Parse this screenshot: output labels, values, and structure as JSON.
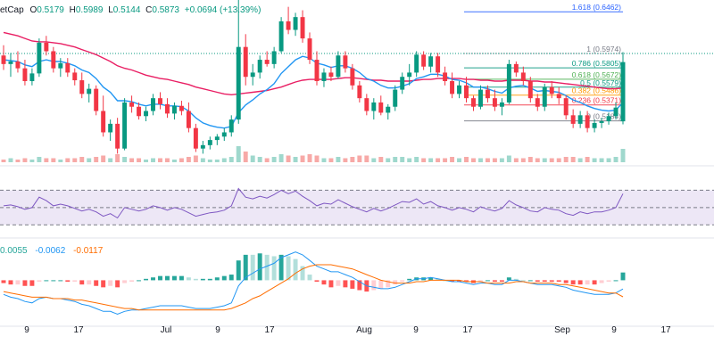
{
  "header": {
    "symbol": "etCap",
    "open_label": "O",
    "open": "0.5179",
    "high_label": "H",
    "high": "0.5989",
    "low_label": "L",
    "low": "0.5144",
    "close_label": "C",
    "close": "0.5873",
    "change": "+0.0694 (+13.39%)"
  },
  "colors": {
    "up": "#089981",
    "down": "#f23645",
    "vol_up": "#9fd8cd",
    "vol_down": "#f7a9a7",
    "ema_fast": "#2196f3",
    "ema_slow": "#e91e63",
    "rsi": "#7e57c2",
    "rsi_band": "#ede7f6",
    "macd": "#2196f3",
    "signal": "#ff6d00",
    "hist_up_strong": "#26a69a",
    "hist_up_weak": "#b2dfdb",
    "hist_down_strong": "#ff5252",
    "hist_down_weak": "#ffcdd2",
    "fib_1618": "#2962ff",
    "fib_1": "#787b86",
    "fib_0786": "#089981",
    "fib_0618": "#4caf50",
    "fib_05": "#089981",
    "fib_0382": "#ff9800",
    "fib_0236": "#f23645",
    "fib_0": "#787b86"
  },
  "macd_legend": {
    "hist": "0.0055",
    "macd": "-0.0062",
    "signal": "-0.0117"
  },
  "chart_data": {
    "type": "candlestick",
    "x_ticks": [
      "9",
      "17",
      "Jul",
      "9",
      "17",
      "Aug",
      "9",
      "17",
      "Sep",
      "9",
      "17"
    ],
    "price_ylim": [
      0.47,
      0.66
    ],
    "candles": [
      [
        0.595,
        0.607,
        0.578,
        0.585
      ],
      [
        0.585,
        0.598,
        0.57,
        0.588
      ],
      [
        0.588,
        0.6,
        0.575,
        0.58
      ],
      [
        0.58,
        0.59,
        0.56,
        0.565
      ],
      [
        0.565,
        0.58,
        0.56,
        0.574
      ],
      [
        0.574,
        0.615,
        0.57,
        0.61
      ],
      [
        0.61,
        0.618,
        0.595,
        0.6
      ],
      [
        0.6,
        0.605,
        0.575,
        0.58
      ],
      [
        0.58,
        0.592,
        0.57,
        0.586
      ],
      [
        0.586,
        0.592,
        0.57,
        0.575
      ],
      [
        0.575,
        0.58,
        0.56,
        0.566
      ],
      [
        0.566,
        0.575,
        0.545,
        0.55
      ],
      [
        0.55,
        0.562,
        0.54,
        0.556
      ],
      [
        0.556,
        0.56,
        0.525,
        0.53
      ],
      [
        0.53,
        0.548,
        0.5,
        0.505
      ],
      [
        0.505,
        0.52,
        0.495,
        0.515
      ],
      [
        0.515,
        0.522,
        0.48,
        0.486
      ],
      [
        0.486,
        0.545,
        0.484,
        0.54
      ],
      [
        0.54,
        0.548,
        0.528,
        0.535
      ],
      [
        0.535,
        0.54,
        0.52,
        0.524
      ],
      [
        0.524,
        0.535,
        0.518,
        0.53
      ],
      [
        0.53,
        0.55,
        0.525,
        0.545
      ],
      [
        0.545,
        0.552,
        0.532,
        0.538
      ],
      [
        0.538,
        0.545,
        0.522,
        0.527
      ],
      [
        0.527,
        0.54,
        0.52,
        0.536
      ],
      [
        0.536,
        0.542,
        0.525,
        0.53
      ],
      [
        0.53,
        0.54,
        0.505,
        0.51
      ],
      [
        0.51,
        0.515,
        0.482,
        0.486
      ],
      [
        0.486,
        0.495,
        0.48,
        0.49
      ],
      [
        0.49,
        0.5,
        0.485,
        0.496
      ],
      [
        0.496,
        0.503,
        0.49,
        0.5
      ],
      [
        0.5,
        0.51,
        0.495,
        0.505
      ],
      [
        0.505,
        0.525,
        0.5,
        0.52
      ],
      [
        0.52,
        0.66,
        0.515,
        0.605
      ],
      [
        0.605,
        0.62,
        0.56,
        0.57
      ],
      [
        0.57,
        0.585,
        0.56,
        0.575
      ],
      [
        0.575,
        0.595,
        0.568,
        0.59
      ],
      [
        0.59,
        0.6,
        0.582,
        0.585
      ],
      [
        0.585,
        0.605,
        0.58,
        0.6
      ],
      [
        0.6,
        0.64,
        0.598,
        0.635
      ],
      [
        0.635,
        0.652,
        0.62,
        0.625
      ],
      [
        0.625,
        0.645,
        0.618,
        0.64
      ],
      [
        0.64,
        0.648,
        0.61,
        0.615
      ],
      [
        0.615,
        0.622,
        0.585,
        0.59
      ],
      [
        0.59,
        0.6,
        0.56,
        0.565
      ],
      [
        0.565,
        0.58,
        0.558,
        0.575
      ],
      [
        0.575,
        0.582,
        0.565,
        0.57
      ],
      [
        0.57,
        0.6,
        0.568,
        0.595
      ],
      [
        0.595,
        0.6,
        0.575,
        0.58
      ],
      [
        0.58,
        0.585,
        0.555,
        0.56
      ],
      [
        0.56,
        0.565,
        0.54,
        0.545
      ],
      [
        0.545,
        0.55,
        0.525,
        0.53
      ],
      [
        0.53,
        0.545,
        0.52,
        0.54
      ],
      [
        0.54,
        0.548,
        0.525,
        0.528
      ],
      [
        0.528,
        0.538,
        0.52,
        0.535
      ],
      [
        0.535,
        0.56,
        0.53,
        0.555
      ],
      [
        0.555,
        0.575,
        0.55,
        0.57
      ],
      [
        0.57,
        0.585,
        0.56,
        0.575
      ],
      [
        0.575,
        0.6,
        0.57,
        0.596
      ],
      [
        0.596,
        0.6,
        0.578,
        0.582
      ],
      [
        0.582,
        0.598,
        0.575,
        0.594
      ],
      [
        0.594,
        0.598,
        0.57,
        0.575
      ],
      [
        0.575,
        0.582,
        0.56,
        0.565
      ],
      [
        0.565,
        0.575,
        0.545,
        0.55
      ],
      [
        0.55,
        0.565,
        0.545,
        0.56
      ],
      [
        0.56,
        0.57,
        0.54,
        0.545
      ],
      [
        0.545,
        0.548,
        0.53,
        0.535
      ],
      [
        0.535,
        0.56,
        0.532,
        0.555
      ],
      [
        0.555,
        0.56,
        0.54,
        0.545
      ],
      [
        0.545,
        0.555,
        0.53,
        0.535
      ],
      [
        0.535,
        0.545,
        0.525,
        0.54
      ],
      [
        0.54,
        0.59,
        0.538,
        0.585
      ],
      [
        0.585,
        0.588,
        0.57,
        0.575
      ],
      [
        0.575,
        0.582,
        0.56,
        0.565
      ],
      [
        0.565,
        0.57,
        0.54,
        0.545
      ],
      [
        0.545,
        0.55,
        0.53,
        0.535
      ],
      [
        0.535,
        0.562,
        0.53,
        0.558
      ],
      [
        0.558,
        0.565,
        0.545,
        0.55
      ],
      [
        0.55,
        0.558,
        0.538,
        0.545
      ],
      [
        0.545,
        0.548,
        0.52,
        0.525
      ],
      [
        0.525,
        0.532,
        0.51,
        0.515
      ],
      [
        0.515,
        0.53,
        0.51,
        0.525
      ],
      [
        0.525,
        0.53,
        0.505,
        0.51
      ],
      [
        0.51,
        0.52,
        0.505,
        0.516
      ],
      [
        0.516,
        0.522,
        0.51,
        0.518
      ],
      [
        0.518,
        0.528,
        0.514,
        0.524
      ],
      [
        0.524,
        0.54,
        0.52,
        0.534
      ],
      [
        0.5179,
        0.5989,
        0.5144,
        0.5873
      ]
    ],
    "volumes": [
      2,
      3,
      2,
      3,
      2,
      4,
      3,
      3,
      2,
      3,
      3,
      4,
      3,
      4,
      5,
      3,
      6,
      4,
      3,
      3,
      2,
      3,
      3,
      3,
      2,
      3,
      4,
      5,
      3,
      2,
      2,
      3,
      4,
      12,
      8,
      5,
      4,
      3,
      4,
      6,
      5,
      4,
      5,
      6,
      5,
      3,
      3,
      4,
      3,
      4,
      5,
      5,
      3,
      4,
      3,
      4,
      4,
      3,
      4,
      3,
      3,
      3,
      3,
      4,
      3,
      4,
      3,
      3,
      3,
      3,
      3,
      5,
      3,
      3,
      4,
      3,
      3,
      3,
      3,
      4,
      4,
      3,
      4,
      3,
      3,
      3,
      4,
      10
    ],
    "rsi_ylim": [
      20,
      90
    ],
    "rsi": [
      52,
      53,
      51,
      48,
      50,
      62,
      58,
      52,
      54,
      52,
      49,
      46,
      48,
      45,
      40,
      43,
      38,
      50,
      48,
      46,
      48,
      52,
      50,
      47,
      50,
      48,
      44,
      40,
      42,
      44,
      45,
      47,
      52,
      72,
      62,
      60,
      63,
      61,
      65,
      70,
      66,
      69,
      63,
      58,
      52,
      55,
      54,
      59,
      55,
      51,
      48,
      45,
      49,
      46,
      49,
      53,
      57,
      56,
      60,
      54,
      57,
      52,
      50,
      47,
      50,
      48,
      45,
      51,
      48,
      46,
      49,
      58,
      53,
      50,
      46,
      45,
      50,
      48,
      47,
      43,
      41,
      45,
      43,
      45,
      45,
      47,
      50,
      66
    ],
    "rsi_levels": [
      70,
      50,
      30
    ],
    "macd_ylim": [
      -0.03,
      0.028
    ],
    "macd": [
      -0.01,
      -0.012,
      -0.013,
      -0.015,
      -0.016,
      -0.013,
      -0.012,
      -0.013,
      -0.013,
      -0.014,
      -0.015,
      -0.017,
      -0.018,
      -0.02,
      -0.022,
      -0.022,
      -0.024,
      -0.022,
      -0.021,
      -0.021,
      -0.02,
      -0.019,
      -0.018,
      -0.018,
      -0.018,
      -0.018,
      -0.019,
      -0.02,
      -0.02,
      -0.02,
      -0.019,
      -0.018,
      -0.016,
      -0.004,
      0.002,
      0.005,
      0.008,
      0.01,
      0.012,
      0.016,
      0.018,
      0.02,
      0.018,
      0.014,
      0.01,
      0.008,
      0.006,
      0.006,
      0.004,
      0.002,
      -0.001,
      -0.004,
      -0.005,
      -0.006,
      -0.006,
      -0.005,
      -0.003,
      -0.001,
      0.001,
      0.001,
      0.002,
      0.001,
      0.0,
      -0.001,
      -0.001,
      -0.002,
      -0.003,
      -0.002,
      -0.002,
      -0.003,
      -0.003,
      0.0,
      0.0,
      -0.001,
      -0.002,
      -0.003,
      -0.003,
      -0.003,
      -0.004,
      -0.005,
      -0.007,
      -0.008,
      -0.009,
      -0.01,
      -0.01,
      -0.01,
      -0.009,
      -0.0062
    ],
    "signal": [
      -0.008,
      -0.009,
      -0.01,
      -0.011,
      -0.012,
      -0.012,
      -0.012,
      -0.013,
      -0.013,
      -0.013,
      -0.014,
      -0.014,
      -0.015,
      -0.016,
      -0.017,
      -0.018,
      -0.019,
      -0.02,
      -0.02,
      -0.021,
      -0.021,
      -0.021,
      -0.021,
      -0.021,
      -0.021,
      -0.021,
      -0.021,
      -0.021,
      -0.021,
      -0.021,
      -0.021,
      -0.021,
      -0.02,
      -0.018,
      -0.016,
      -0.013,
      -0.011,
      -0.008,
      -0.005,
      -0.002,
      0.001,
      0.005,
      0.008,
      0.01,
      0.011,
      0.011,
      0.011,
      0.01,
      0.009,
      0.008,
      0.006,
      0.004,
      0.002,
      0.0,
      -0.001,
      -0.002,
      -0.002,
      -0.002,
      -0.001,
      -0.001,
      0.0,
      0.0,
      0.0,
      0.0,
      0.0,
      -0.001,
      -0.001,
      -0.001,
      -0.002,
      -0.002,
      -0.002,
      -0.002,
      -0.001,
      -0.001,
      -0.002,
      -0.002,
      -0.002,
      -0.002,
      -0.003,
      -0.003,
      -0.004,
      -0.005,
      -0.006,
      -0.007,
      -0.008,
      -0.009,
      -0.009,
      -0.0117
    ],
    "ema_fast": [
      0.59,
      0.589,
      0.588,
      0.584,
      0.582,
      0.588,
      0.59,
      0.588,
      0.588,
      0.586,
      0.583,
      0.578,
      0.575,
      0.568,
      0.558,
      0.552,
      0.542,
      0.542,
      0.541,
      0.538,
      0.536,
      0.538,
      0.538,
      0.536,
      0.536,
      0.535,
      0.53,
      0.522,
      0.516,
      0.513,
      0.511,
      0.51,
      0.512,
      0.528,
      0.537,
      0.543,
      0.55,
      0.555,
      0.562,
      0.574,
      0.582,
      0.59,
      0.594,
      0.592,
      0.586,
      0.584,
      0.581,
      0.583,
      0.583,
      0.58,
      0.575,
      0.568,
      0.565,
      0.56,
      0.557,
      0.557,
      0.559,
      0.562,
      0.568,
      0.57,
      0.573,
      0.573,
      0.571,
      0.567,
      0.566,
      0.563,
      0.558,
      0.558,
      0.556,
      0.553,
      0.551,
      0.557,
      0.559,
      0.56,
      0.557,
      0.553,
      0.554,
      0.553,
      0.552,
      0.548,
      0.543,
      0.54,
      0.536,
      0.533,
      0.531,
      0.53,
      0.531,
      0.54
    ],
    "ema_slow": [
      0.622,
      0.62,
      0.618,
      0.615,
      0.612,
      0.611,
      0.611,
      0.61,
      0.609,
      0.607,
      0.605,
      0.602,
      0.599,
      0.596,
      0.592,
      0.588,
      0.583,
      0.58,
      0.578,
      0.575,
      0.572,
      0.57,
      0.568,
      0.567,
      0.565,
      0.563,
      0.561,
      0.558,
      0.556,
      0.554,
      0.552,
      0.55,
      0.549,
      0.55,
      0.551,
      0.552,
      0.553,
      0.554,
      0.556,
      0.558,
      0.561,
      0.564,
      0.566,
      0.567,
      0.567,
      0.567,
      0.567,
      0.568,
      0.569,
      0.569,
      0.568,
      0.567,
      0.566,
      0.566,
      0.565,
      0.565,
      0.565,
      0.565,
      0.566,
      0.567,
      0.567,
      0.568,
      0.568,
      0.568,
      0.568,
      0.567,
      0.567,
      0.566,
      0.566,
      0.565,
      0.565,
      0.566,
      0.566,
      0.566,
      0.565,
      0.565,
      0.564,
      0.564,
      0.563,
      0.562,
      0.561,
      0.56,
      0.559,
      0.558,
      0.557,
      0.556,
      0.556,
      0.557
    ],
    "fib_levels": [
      {
        "label": "1.618 (0.6462)",
        "value": 0.6462,
        "color_key": "fib_1618"
      },
      {
        "label": "1 (0.5974)",
        "value": 0.5974,
        "color_key": "fib_1"
      },
      {
        "label": "0.786 (0.5805)",
        "value": 0.5805,
        "color_key": "fib_0786"
      },
      {
        "label": "0.618 (0.5672)",
        "value": 0.5672,
        "color_key": "fib_0618"
      },
      {
        "label": "0.5 (0.5579)",
        "value": 0.5579,
        "color_key": "fib_05"
      },
      {
        "label": "0.382 (0.5486)",
        "value": 0.5486,
        "color_key": "fib_0382"
      },
      {
        "label": "0.236 (0.5371)",
        "value": 0.5371,
        "color_key": "fib_0236"
      },
      {
        "label": "0 (0.5184)",
        "value": 0.5184,
        "color_key": "fib_0"
      }
    ]
  }
}
